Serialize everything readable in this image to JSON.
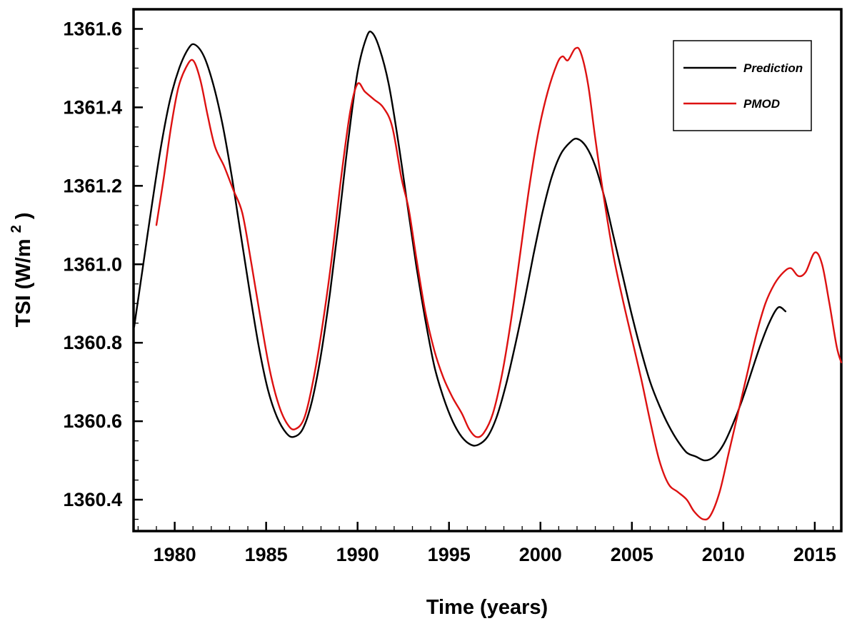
{
  "chart_data": {
    "type": "line",
    "title": "",
    "xlabel": "Time (years)",
    "ylabel": {
      "main": "TSI (W/m",
      "sup": "2",
      "end": ")"
    },
    "xlim": [
      1977.75,
      2016.45
    ],
    "ylim": [
      1360.32,
      1361.65
    ],
    "grid": false,
    "frame_color": "#000000",
    "xticks": {
      "values": [
        1980,
        1985,
        1990,
        1995,
        2000,
        2005,
        2010,
        2015
      ],
      "labels": [
        "1980",
        "1985",
        "1990",
        "1995",
        "2000",
        "2005",
        "2010",
        "2015"
      ]
    },
    "yticks": {
      "values": [
        1360.4,
        1360.6,
        1360.8,
        1361.0,
        1361.2,
        1361.4,
        1361.6
      ],
      "labels": [
        "1360.4",
        "1360.6",
        "1360.8",
        "1361.0",
        "1361.2",
        "1361.4",
        "1361.6"
      ]
    },
    "minor_x_step": 1,
    "minor_y_step": 0.05,
    "legend": {
      "position": "top-right",
      "entries": [
        {
          "label": "Prediction",
          "color": "#000000"
        },
        {
          "label": "PMOD",
          "color": "#dd1111"
        }
      ]
    },
    "series": [
      {
        "name": "Prediction",
        "color": "#000000",
        "points": [
          [
            1977.78,
            1360.84
          ],
          [
            1978.25,
            1360.99
          ],
          [
            1978.75,
            1361.15
          ],
          [
            1979.25,
            1361.3
          ],
          [
            1979.75,
            1361.42
          ],
          [
            1980.25,
            1361.5
          ],
          [
            1980.75,
            1361.55
          ],
          [
            1981.1,
            1361.56
          ],
          [
            1981.6,
            1361.53
          ],
          [
            1982.1,
            1361.46
          ],
          [
            1982.6,
            1361.36
          ],
          [
            1983.1,
            1361.23
          ],
          [
            1983.6,
            1361.08
          ],
          [
            1984.1,
            1360.93
          ],
          [
            1984.6,
            1360.79
          ],
          [
            1985.1,
            1360.68
          ],
          [
            1985.6,
            1360.61
          ],
          [
            1986.1,
            1360.57
          ],
          [
            1986.5,
            1360.56
          ],
          [
            1987.0,
            1360.58
          ],
          [
            1987.5,
            1360.65
          ],
          [
            1988.0,
            1360.77
          ],
          [
            1988.5,
            1360.93
          ],
          [
            1989.0,
            1361.12
          ],
          [
            1989.5,
            1361.32
          ],
          [
            1990.0,
            1361.49
          ],
          [
            1990.5,
            1361.58
          ],
          [
            1990.8,
            1361.59
          ],
          [
            1991.2,
            1361.55
          ],
          [
            1991.7,
            1361.46
          ],
          [
            1992.2,
            1361.32
          ],
          [
            1992.7,
            1361.16
          ],
          [
            1993.2,
            1361.0
          ],
          [
            1993.7,
            1360.86
          ],
          [
            1994.2,
            1360.74
          ],
          [
            1994.7,
            1360.66
          ],
          [
            1995.2,
            1360.6
          ],
          [
            1995.7,
            1360.56
          ],
          [
            1996.2,
            1360.54
          ],
          [
            1996.6,
            1360.54
          ],
          [
            1997.1,
            1360.56
          ],
          [
            1997.6,
            1360.61
          ],
          [
            1998.1,
            1360.69
          ],
          [
            1998.6,
            1360.79
          ],
          [
            1999.1,
            1360.9
          ],
          [
            1999.6,
            1361.02
          ],
          [
            2000.1,
            1361.13
          ],
          [
            2000.6,
            1361.22
          ],
          [
            2001.1,
            1361.28
          ],
          [
            2001.6,
            1361.31
          ],
          [
            2002.0,
            1361.32
          ],
          [
            2002.5,
            1361.3
          ],
          [
            2003.0,
            1361.25
          ],
          [
            2003.5,
            1361.17
          ],
          [
            2004.0,
            1361.07
          ],
          [
            2004.5,
            1360.97
          ],
          [
            2005.0,
            1360.87
          ],
          [
            2005.5,
            1360.78
          ],
          [
            2006.0,
            1360.7
          ],
          [
            2006.5,
            1360.64
          ],
          [
            2007.0,
            1360.59
          ],
          [
            2007.5,
            1360.55
          ],
          [
            2008.0,
            1360.52
          ],
          [
            2008.5,
            1360.51
          ],
          [
            2009.0,
            1360.5
          ],
          [
            2009.5,
            1360.51
          ],
          [
            2010.0,
            1360.54
          ],
          [
            2010.5,
            1360.59
          ],
          [
            2011.0,
            1360.65
          ],
          [
            2011.5,
            1360.72
          ],
          [
            2012.0,
            1360.79
          ],
          [
            2012.5,
            1360.85
          ],
          [
            2013.0,
            1360.89
          ],
          [
            2013.4,
            1360.88
          ]
        ]
      },
      {
        "name": "PMOD",
        "color": "#dd1111",
        "points": [
          [
            1979.0,
            1361.1
          ],
          [
            1979.4,
            1361.22
          ],
          [
            1979.8,
            1361.35
          ],
          [
            1980.2,
            1361.45
          ],
          [
            1980.6,
            1361.5
          ],
          [
            1981.0,
            1361.52
          ],
          [
            1981.4,
            1361.47
          ],
          [
            1981.8,
            1361.38
          ],
          [
            1982.2,
            1361.3
          ],
          [
            1982.7,
            1361.25
          ],
          [
            1983.2,
            1361.19
          ],
          [
            1983.7,
            1361.13
          ],
          [
            1984.2,
            1361.0
          ],
          [
            1984.7,
            1360.86
          ],
          [
            1985.2,
            1360.73
          ],
          [
            1985.7,
            1360.64
          ],
          [
            1986.2,
            1360.59
          ],
          [
            1986.6,
            1360.58
          ],
          [
            1987.1,
            1360.61
          ],
          [
            1987.6,
            1360.71
          ],
          [
            1988.1,
            1360.85
          ],
          [
            1988.6,
            1361.02
          ],
          [
            1989.1,
            1361.22
          ],
          [
            1989.6,
            1361.39
          ],
          [
            1990.0,
            1361.46
          ],
          [
            1990.4,
            1361.44
          ],
          [
            1990.9,
            1361.42
          ],
          [
            1991.4,
            1361.4
          ],
          [
            1991.9,
            1361.35
          ],
          [
            1992.4,
            1361.22
          ],
          [
            1992.8,
            1361.14
          ],
          [
            1993.2,
            1361.02
          ],
          [
            1993.7,
            1360.88
          ],
          [
            1994.2,
            1360.78
          ],
          [
            1994.7,
            1360.71
          ],
          [
            1995.2,
            1360.66
          ],
          [
            1995.7,
            1360.62
          ],
          [
            1996.1,
            1360.58
          ],
          [
            1996.5,
            1360.56
          ],
          [
            1996.9,
            1360.57
          ],
          [
            1997.4,
            1360.62
          ],
          [
            1997.9,
            1360.72
          ],
          [
            1998.4,
            1360.86
          ],
          [
            1998.9,
            1361.03
          ],
          [
            1999.4,
            1361.2
          ],
          [
            1999.9,
            1361.34
          ],
          [
            2000.4,
            1361.44
          ],
          [
            2000.9,
            1361.51
          ],
          [
            2001.2,
            1361.53
          ],
          [
            2001.5,
            1361.52
          ],
          [
            2001.9,
            1361.55
          ],
          [
            2002.2,
            1361.54
          ],
          [
            2002.6,
            1361.46
          ],
          [
            2003.0,
            1361.32
          ],
          [
            2003.5,
            1361.16
          ],
          [
            2004.0,
            1361.02
          ],
          [
            2004.5,
            1360.91
          ],
          [
            2005.0,
            1360.81
          ],
          [
            2005.5,
            1360.71
          ],
          [
            2006.0,
            1360.6
          ],
          [
            2006.5,
            1360.5
          ],
          [
            2007.0,
            1360.44
          ],
          [
            2007.5,
            1360.42
          ],
          [
            2008.0,
            1360.4
          ],
          [
            2008.4,
            1360.37
          ],
          [
            2008.9,
            1360.35
          ],
          [
            2009.3,
            1360.36
          ],
          [
            2009.8,
            1360.42
          ],
          [
            2010.3,
            1360.52
          ],
          [
            2010.8,
            1360.62
          ],
          [
            2011.3,
            1360.72
          ],
          [
            2011.8,
            1360.82
          ],
          [
            2012.3,
            1360.9
          ],
          [
            2012.8,
            1360.95
          ],
          [
            2013.3,
            1360.98
          ],
          [
            2013.7,
            1360.99
          ],
          [
            2014.1,
            1360.97
          ],
          [
            2014.5,
            1360.98
          ],
          [
            2015.0,
            1361.03
          ],
          [
            2015.4,
            1361.0
          ],
          [
            2015.8,
            1360.9
          ],
          [
            2016.2,
            1360.79
          ],
          [
            2016.45,
            1360.75
          ]
        ]
      }
    ]
  }
}
